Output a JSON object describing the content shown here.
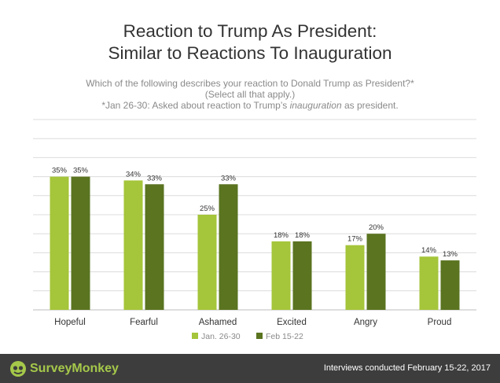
{
  "title_line1": "Reaction to Trump As President:",
  "title_line2": "Similar to Reactions To Inauguration",
  "subtitle_line1": "Which of the following describes your reaction to Donald Trump as President?*",
  "subtitle_line2": "(Select all that apply.)",
  "subtitle_line3_prefix": "*Jan 26-30: Asked about reaction to Trump’s ",
  "subtitle_line3_italic": "inauguration",
  "subtitle_line3_suffix": " as president.",
  "footer": {
    "brand": "SurveyMonkey",
    "note": "Interviews conducted February 15-22, 2017",
    "logo_icon": "surveymonkey-logo-icon"
  },
  "colors": {
    "series1": "#a5c53a",
    "series2": "#5a7420",
    "grid": "#dcdcdc",
    "footer_bg": "#3d3d3d"
  },
  "chart_data": {
    "type": "bar",
    "categories": [
      "Hopeful",
      "Fearful",
      "Ashamed",
      "Excited",
      "Angry",
      "Proud"
    ],
    "series": [
      {
        "name": "Jan. 26-30",
        "values": [
          35,
          34,
          25,
          18,
          17,
          14
        ]
      },
      {
        "name": "Feb 15-22",
        "values": [
          35,
          33,
          33,
          18,
          20,
          13
        ]
      }
    ],
    "value_labels": [
      [
        "35%",
        "34%",
        "25%",
        "18%",
        "17%",
        "14%"
      ],
      [
        "35%",
        "33%",
        "33%",
        "18%",
        "20%",
        "13%"
      ]
    ],
    "ylim": [
      0,
      50
    ],
    "grid": true,
    "legend_position": "bottom"
  }
}
